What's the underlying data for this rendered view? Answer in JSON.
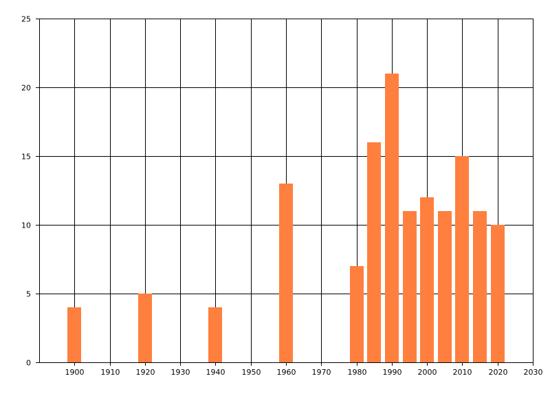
{
  "chart_data": {
    "type": "bar",
    "title": "",
    "xlabel": "",
    "ylabel": "",
    "x": [
      1900,
      1920,
      1940,
      1960,
      1980,
      1985,
      1990,
      1995,
      2000,
      2005,
      2010,
      2015,
      2020
    ],
    "values": [
      4,
      5,
      4,
      13,
      7,
      16,
      21,
      11,
      12,
      11,
      15,
      11,
      10
    ],
    "xlim": [
      1890,
      2030
    ],
    "ylim": [
      0,
      25
    ],
    "x_ticks": [
      1900,
      1910,
      1920,
      1930,
      1940,
      1950,
      1960,
      1970,
      1980,
      1990,
      2000,
      2010,
      2020,
      2030
    ],
    "y_ticks": [
      0,
      5,
      10,
      15,
      20,
      25
    ],
    "grid": true,
    "legend": "none",
    "bar_color": "#ff7f3f"
  }
}
